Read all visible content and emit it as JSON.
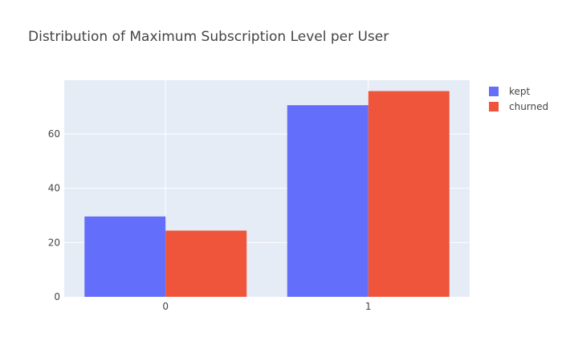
{
  "chart_data": {
    "type": "bar",
    "title": "Distribution of Maximum Subscription Level per User",
    "xlabel": "",
    "ylabel": "",
    "categories": [
      "0",
      "1"
    ],
    "series": [
      {
        "name": "kept",
        "values": [
          29.6,
          70.6
        ],
        "color": "#636efa"
      },
      {
        "name": "churned",
        "values": [
          24.4,
          75.8
        ],
        "color": "#ef553b"
      }
    ],
    "ylim": [
      0,
      79.8
    ],
    "yticks": [
      0,
      20,
      40,
      60
    ],
    "grid": true,
    "legend_position": "top-right",
    "plot_background": "#e5ecf6"
  }
}
